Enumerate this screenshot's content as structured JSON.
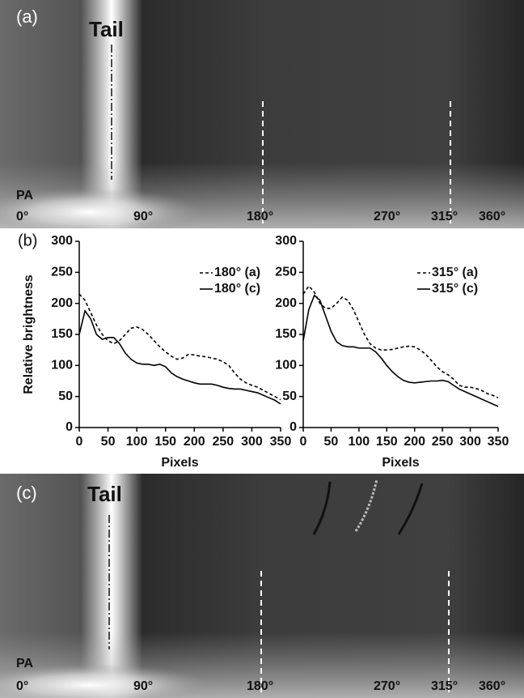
{
  "image_panels": [
    {
      "label": "(a)",
      "feature": "Tail",
      "axis_name": "PA",
      "angle_labels": [
        "0°",
        "90°",
        "180°",
        "270°",
        "315°",
        "360°"
      ]
    },
    {
      "label": "(c)",
      "feature": "Tail",
      "axis_name": "PA",
      "angle_labels": [
        "0°",
        "90°",
        "180°",
        "270°",
        "315°",
        "360°"
      ]
    }
  ],
  "panel_b_label": "(b)",
  "chart_data": [
    {
      "type": "line",
      "ylabel": "Relative brightness",
      "xlabel": "Pixels",
      "x": [
        0,
        10,
        20,
        30,
        40,
        50,
        60,
        70,
        80,
        90,
        100,
        110,
        120,
        130,
        140,
        150,
        160,
        170,
        180,
        190,
        200,
        210,
        220,
        230,
        240,
        250,
        260,
        270,
        280,
        290,
        300,
        310,
        320,
        330,
        340,
        350
      ],
      "xlim": [
        0,
        350
      ],
      "xticks": [
        0,
        50,
        100,
        150,
        200,
        250,
        300,
        350
      ],
      "ylim": [
        0,
        300
      ],
      "yticks": [
        0,
        50,
        100,
        150,
        200,
        250,
        300
      ],
      "series": [
        {
          "name": "180° (a)",
          "color": "#000000",
          "style": "dashed",
          "values": [
            215,
            205,
            185,
            165,
            150,
            140,
            135,
            140,
            150,
            160,
            162,
            158,
            150,
            140,
            130,
            122,
            115,
            110,
            112,
            118,
            117,
            115,
            114,
            112,
            110,
            106,
            100,
            88,
            78,
            72,
            68,
            65,
            60,
            55,
            50,
            45
          ]
        },
        {
          "name": "180° (c)",
          "color": "#000000",
          "style": "solid",
          "values": [
            150,
            188,
            175,
            150,
            142,
            145,
            145,
            135,
            120,
            110,
            104,
            102,
            102,
            100,
            102,
            98,
            88,
            82,
            78,
            75,
            72,
            70,
            70,
            70,
            68,
            65,
            63,
            62,
            62,
            60,
            58,
            56,
            52,
            48,
            44,
            38
          ]
        }
      ]
    },
    {
      "type": "line",
      "xlabel": "Pixels",
      "x": [
        0,
        10,
        20,
        30,
        40,
        50,
        60,
        70,
        80,
        90,
        100,
        110,
        120,
        130,
        140,
        150,
        160,
        170,
        180,
        190,
        200,
        210,
        220,
        230,
        240,
        250,
        260,
        270,
        280,
        290,
        300,
        310,
        320,
        330,
        340,
        350
      ],
      "xlim": [
        0,
        350
      ],
      "xticks": [
        0,
        50,
        100,
        150,
        200,
        250,
        300,
        350
      ],
      "ylim": [
        0,
        300
      ],
      "yticks": [
        0,
        50,
        100,
        150,
        200,
        250,
        300
      ],
      "series": [
        {
          "name": "315° (a)",
          "color": "#000000",
          "style": "dashed",
          "values": [
            215,
            228,
            218,
            200,
            192,
            192,
            200,
            210,
            205,
            190,
            170,
            150,
            135,
            128,
            125,
            125,
            126,
            128,
            130,
            131,
            130,
            125,
            118,
            108,
            98,
            90,
            85,
            78,
            68,
            65,
            65,
            63,
            60,
            55,
            52,
            48
          ]
        },
        {
          "name": "315° (c)",
          "color": "#000000",
          "style": "solid",
          "values": [
            140,
            190,
            213,
            205,
            180,
            155,
            138,
            132,
            130,
            130,
            128,
            128,
            128,
            122,
            112,
            100,
            90,
            82,
            76,
            73,
            72,
            73,
            74,
            75,
            75,
            76,
            74,
            68,
            62,
            58,
            54,
            50,
            46,
            42,
            38,
            34
          ]
        }
      ]
    }
  ]
}
